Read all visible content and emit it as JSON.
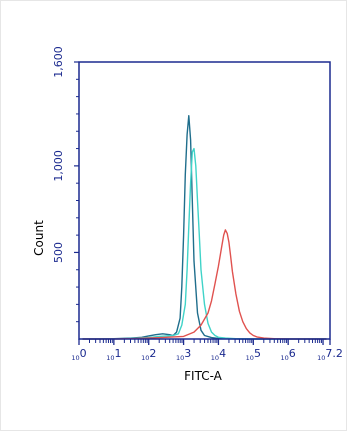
{
  "chart_data": {
    "type": "line",
    "title": "",
    "xlabel": "FITC-A",
    "ylabel": "Count",
    "x_scale": "log10",
    "xlim": [
      0,
      7.2
    ],
    "ylim": [
      0,
      1600
    ],
    "grid": false,
    "legend": "none",
    "axis_color": "#1b2a8f",
    "x_ticks": [
      {
        "base": "10",
        "exp": "0",
        "value": 0
      },
      {
        "base": "10",
        "exp": "1",
        "value": 1
      },
      {
        "base": "10",
        "exp": "2",
        "value": 2
      },
      {
        "base": "10",
        "exp": "3",
        "value": 3
      },
      {
        "base": "10",
        "exp": "4",
        "value": 4
      },
      {
        "base": "10",
        "exp": "5",
        "value": 5
      },
      {
        "base": "10",
        "exp": "6",
        "value": 6
      },
      {
        "base": "10",
        "exp": "7.2",
        "value": 7.2
      }
    ],
    "y_ticks": [
      {
        "label": "500",
        "value": 500
      },
      {
        "label": "1,000",
        "value": 1000
      },
      {
        "label": "1,600",
        "value": 1600
      }
    ],
    "series": [
      {
        "color": "#1f6e8c",
        "x": [
          0.1,
          0.5,
          1.0,
          1.5,
          1.8,
          2.0,
          2.2,
          2.4,
          2.6,
          2.7,
          2.8,
          2.9,
          2.95,
          3.0,
          3.05,
          3.1,
          3.15,
          3.2,
          3.25,
          3.3,
          3.4,
          3.5,
          3.6,
          3.8,
          4.0,
          4.3,
          4.6,
          5.0,
          5.5,
          6.0,
          6.5,
          7.1
        ],
        "y": [
          0,
          0,
          2,
          5,
          10,
          18,
          25,
          30,
          25,
          20,
          40,
          120,
          300,
          600,
          950,
          1180,
          1290,
          1150,
          800,
          450,
          150,
          50,
          20,
          8,
          3,
          1,
          0,
          0,
          0,
          0,
          0,
          0
        ]
      },
      {
        "color": "#3fd3c8",
        "x": [
          0.1,
          0.5,
          1.0,
          1.5,
          2.0,
          2.3,
          2.5,
          2.7,
          2.85,
          2.95,
          3.05,
          3.1,
          3.15,
          3.2,
          3.25,
          3.3,
          3.35,
          3.4,
          3.45,
          3.5,
          3.6,
          3.7,
          3.8,
          3.9,
          4.0,
          4.2,
          4.5,
          5.0,
          5.5,
          6.0,
          6.5,
          7.1
        ],
        "y": [
          0,
          0,
          1,
          3,
          8,
          15,
          18,
          20,
          30,
          80,
          200,
          400,
          650,
          900,
          1080,
          1100,
          1000,
          800,
          600,
          400,
          200,
          90,
          40,
          20,
          10,
          5,
          2,
          0,
          0,
          0,
          0,
          2
        ]
      },
      {
        "color": "#e0524f",
        "x": [
          0.1,
          0.5,
          1.0,
          1.5,
          2.0,
          2.5,
          3.0,
          3.3,
          3.5,
          3.7,
          3.8,
          3.9,
          4.0,
          4.1,
          4.15,
          4.2,
          4.25,
          4.3,
          4.35,
          4.4,
          4.5,
          4.6,
          4.7,
          4.8,
          4.9,
          5.0,
          5.1,
          5.3,
          5.6,
          6.0,
          6.5,
          7.1
        ],
        "y": [
          0,
          0,
          0,
          2,
          5,
          10,
          15,
          40,
          80,
          150,
          220,
          320,
          420,
          540,
          600,
          630,
          610,
          560,
          480,
          390,
          260,
          160,
          100,
          60,
          35,
          20,
          12,
          5,
          2,
          0,
          0,
          0
        ]
      }
    ]
  }
}
